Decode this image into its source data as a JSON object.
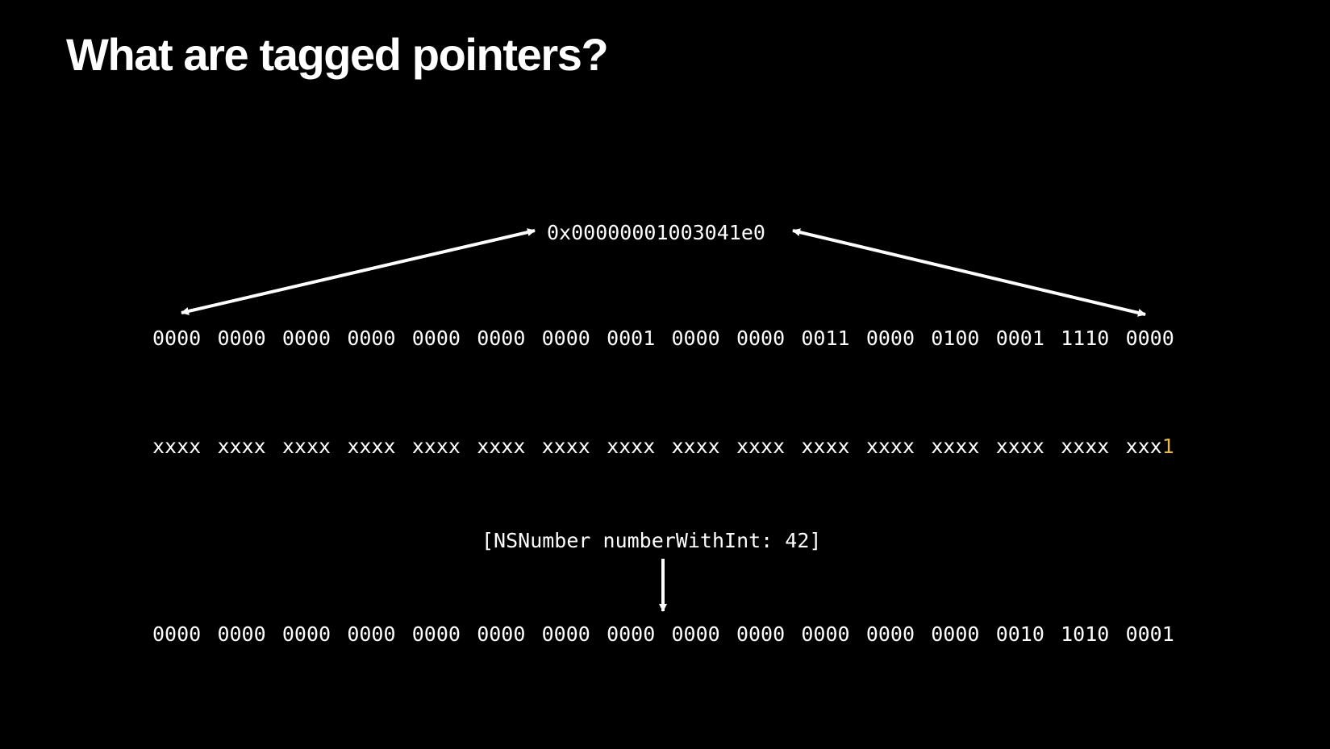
{
  "slide": {
    "title": "What are tagged pointers?",
    "pointer_hex": "0x00000001003041e0",
    "pointer_binary": [
      "0000",
      "0000",
      "0000",
      "0000",
      "0000",
      "0000",
      "0000",
      "0001",
      "0000",
      "0000",
      "0011",
      "0000",
      "0100",
      "0001",
      "1110",
      "0000"
    ],
    "tag_mask": {
      "nibbles": [
        "xxxx",
        "xxxx",
        "xxxx",
        "xxxx",
        "xxxx",
        "xxxx",
        "xxxx",
        "xxxx",
        "xxxx",
        "xxxx",
        "xxxx",
        "xxxx",
        "xxxx",
        "xxxx",
        "xxxx"
      ],
      "last_prefix": "xxx",
      "tag_bit": "1",
      "tag_bit_color": "#e9b84d"
    },
    "message_send": "[NSNumber numberWithInt: 42]",
    "result_binary": [
      "0000",
      "0000",
      "0000",
      "0000",
      "0000",
      "0000",
      "0000",
      "0000",
      "0000",
      "0000",
      "0000",
      "0000",
      "0000",
      "0010",
      "1010",
      "0001"
    ]
  }
}
